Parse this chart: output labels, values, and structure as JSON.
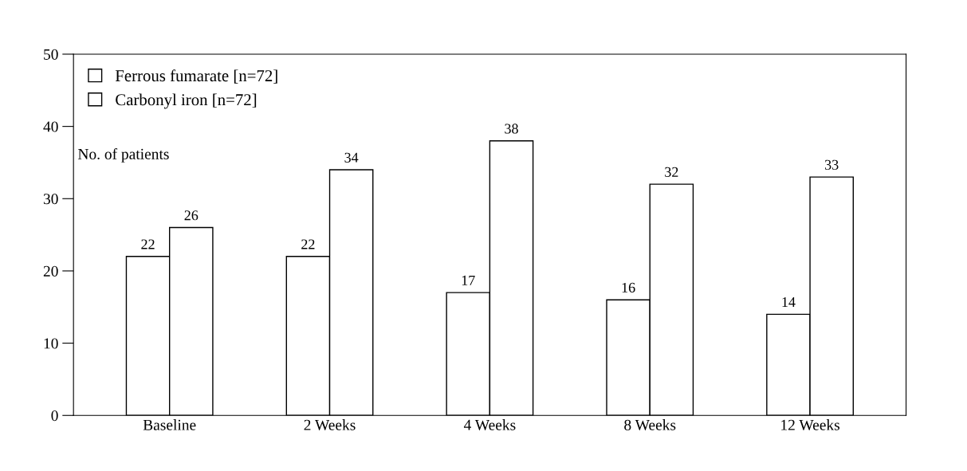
{
  "chart_data": {
    "type": "bar",
    "ylabel": "No. of patients",
    "categories": [
      "Baseline",
      "2 Weeks",
      "4 Weeks",
      "8 Weeks",
      "12 Weeks"
    ],
    "series": [
      {
        "name": "Ferrous fumarate [n=72]",
        "color": "#ffffff",
        "values": [
          22,
          22,
          17,
          16,
          14
        ]
      },
      {
        "name": "Carbonyl iron [n=72]",
        "color": "#ffffff",
        "values": [
          26,
          34,
          38,
          32,
          33
        ]
      }
    ],
    "ylim": [
      0,
      50
    ],
    "yticks": [
      0,
      10,
      20,
      30,
      40,
      50
    ],
    "data_labels": true,
    "grid": false,
    "legend": "top left"
  }
}
